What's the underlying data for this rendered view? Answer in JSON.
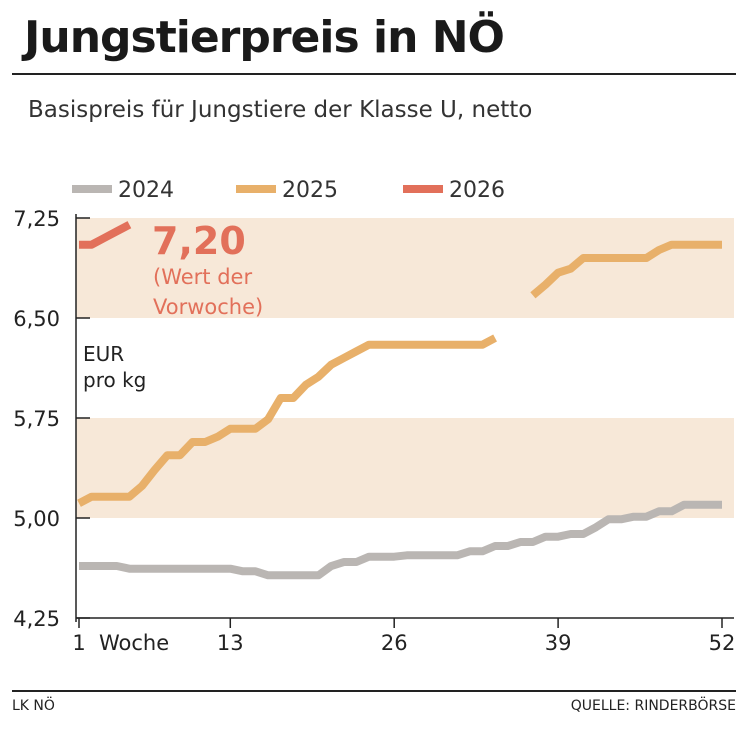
{
  "header": {
    "title": "Jungstierpreis in NÖ",
    "subtitle": "Basispreis für Jungstiere der Klasse U, netto"
  },
  "footer": {
    "left": "LK NÖ",
    "right": "QUELLE: RINDERBÖRSE"
  },
  "chart_data": {
    "type": "line",
    "title": "Jungstierpreis in NÖ",
    "subtitle": "Basispreis für Jungstiere der Klasse U, netto",
    "ylabel": "EUR\npro kg",
    "ylabel_lines": [
      "EUR",
      "pro kg"
    ],
    "xlabel": "Woche",
    "ylim": [
      4.25,
      7.25
    ],
    "xlim": [
      1,
      52
    ],
    "yticks": [
      "7,25",
      "6,50",
      "5,75",
      "5,00",
      "4,25"
    ],
    "ytick_values": [
      7.25,
      6.5,
      5.75,
      5.0,
      4.25
    ],
    "xticks": [
      "1",
      "13",
      "26",
      "39",
      "52"
    ],
    "xtick_values": [
      1,
      13,
      26,
      39,
      52
    ],
    "legend_placement": "top",
    "bands": [
      [
        5.0,
        5.75
      ],
      [
        6.5,
        7.25
      ]
    ],
    "band_color": "#f7e8d8",
    "annotation": {
      "value": "7,20",
      "note_lines": [
        "(Wert der",
        "Vorwoche)"
      ],
      "color": "#e2705a"
    },
    "series": [
      {
        "name": "2024",
        "color": "#bab6b3",
        "values": [
          4.64,
          4.64,
          4.64,
          4.64,
          4.62,
          4.62,
          4.62,
          4.62,
          4.62,
          4.62,
          4.62,
          4.62,
          4.62,
          4.6,
          4.6,
          4.57,
          4.57,
          4.57,
          4.57,
          4.57,
          4.64,
          4.67,
          4.67,
          4.71,
          4.71,
          4.71,
          4.72,
          4.72,
          4.72,
          4.72,
          4.72,
          4.75,
          4.75,
          4.79,
          4.79,
          4.82,
          4.82,
          4.86,
          4.86,
          4.88,
          4.88,
          4.93,
          4.99,
          4.99,
          5.01,
          5.01,
          5.05,
          5.05,
          5.1,
          5.1,
          5.1,
          5.1
        ]
      },
      {
        "name": "2025",
        "color": "#e8b06a",
        "values": [
          5.11,
          5.16,
          5.16,
          5.16,
          5.16,
          5.24,
          5.36,
          5.47,
          5.47,
          5.57,
          5.57,
          5.61,
          5.67,
          5.67,
          5.67,
          5.74,
          5.9,
          5.9,
          6.0,
          6.06,
          6.15,
          6.2,
          6.25,
          6.3,
          6.3,
          6.3,
          6.3,
          6.3,
          6.3,
          6.3,
          6.3,
          6.3,
          6.3,
          6.35,
          null,
          null,
          6.67,
          6.75,
          6.84,
          6.87,
          6.95,
          6.95,
          6.95,
          6.95,
          6.95,
          6.95,
          7.01,
          7.05,
          7.05,
          7.05,
          7.05,
          7.05
        ]
      },
      {
        "name": "2026",
        "color": "#e2705a",
        "values": [
          7.05,
          7.05,
          7.1,
          7.15,
          7.2
        ]
      }
    ]
  }
}
